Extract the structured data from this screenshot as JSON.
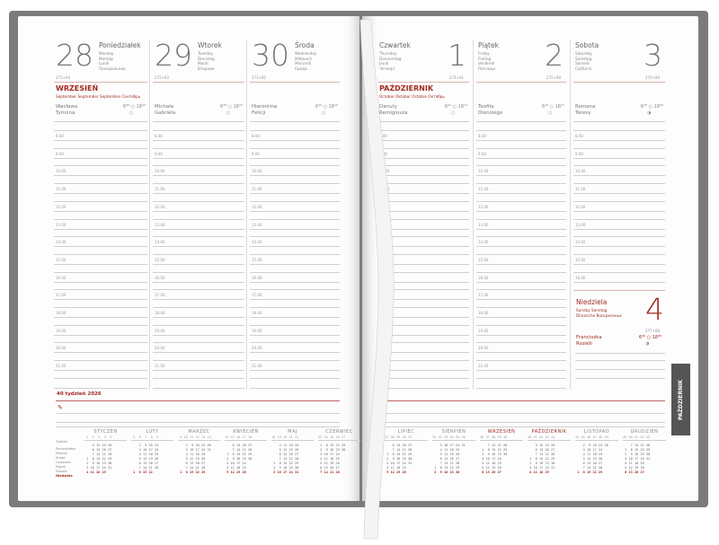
{
  "left_page": {
    "days": [
      {
        "number": "28",
        "name": "Poniedziałek",
        "translations": [
          "Monday",
          "Montag",
          "Lundi",
          "Понедельник"
        ],
        "day_of_year": "271+94",
        "name_days": [
          "Wacława",
          "Tymona"
        ],
        "sun_times": "6³⁶ ○ 18²⁰",
        "moon": "○"
      },
      {
        "number": "29",
        "name": "Wtorek",
        "translations": [
          "Tuesday",
          "Dienstag",
          "Mardi",
          "Вторник"
        ],
        "day_of_year": "272+93",
        "name_days": [
          "Michała",
          "Gabriela"
        ],
        "sun_times": "6³⁸ ○ 18¹⁸",
        "moon": "○"
      },
      {
        "number": "30",
        "name": "Środa",
        "translations": [
          "Wednesday",
          "Mittwoch",
          "Mercredi",
          "Среда"
        ],
        "day_of_year": "273+92",
        "name_days": [
          "Hieronima",
          "Felicji"
        ],
        "sun_times": "6⁴⁰ ○ 18¹⁵",
        "moon": "○"
      }
    ],
    "month": "WRZESIEŃ",
    "month_translations": "September  September  Septembre  Сентябрь",
    "week_label": "40 tydzień 2026"
  },
  "right_page": {
    "days": [
      {
        "number": "1",
        "name": "Czwartek",
        "translations": [
          "Thursday",
          "Donnerstag",
          "Jeudi",
          "Четверг"
        ],
        "day_of_year": "274+91",
        "name_days": [
          "Danuty",
          "Remigiusza"
        ],
        "sun_times": "6⁴¹ ○ 18¹³",
        "moon": "○"
      },
      {
        "number": "2",
        "name": "Piątek",
        "translations": [
          "Friday",
          "Freitag",
          "Vendredi",
          "Пятница"
        ],
        "day_of_year": "275+90",
        "name_days": [
          "Teofila",
          "Dionizego"
        ],
        "sun_times": "6⁴³ ○ 18¹¹",
        "moon": "○"
      },
      {
        "number": "3",
        "name": "Sobota",
        "translations": [
          "Saturday",
          "Samstag",
          "Samedi",
          "Суббота"
        ],
        "day_of_year": "276+89",
        "name_days": [
          "Romana",
          "Teresy"
        ],
        "sun_times": "6⁴⁵ ○ 18⁰⁹",
        "moon": "◑"
      }
    ],
    "month": "PAŹDZIERNIK",
    "month_translations": "October  Oktober  Octobre  Октябрь",
    "sunday": {
      "number": "4",
      "name": "Niedziela",
      "translations": [
        "Sunday Sonntag",
        "Dimanche Воскресенье"
      ],
      "day_of_year": "277+88",
      "name_days": [
        "Franciszka",
        "Rozalii"
      ],
      "sun_times": "6⁴⁶ ○ 18⁰⁸",
      "moon": "◑"
    },
    "tab_label": "PAŹDZIERNIK"
  },
  "hours": [
    "8.00",
    "9.00",
    "10.00",
    "11.00",
    "12.00",
    "13.00",
    "14.00",
    "15.00",
    "16.00",
    "17.00",
    "18.00",
    "19.00",
    "20.00",
    "21.00"
  ],
  "weekday_labels": [
    "Tydzień",
    "Poniedziałek",
    "Wtorek",
    "Środa",
    "Czwartek",
    "Piątek",
    "Sobota",
    "Niedziela"
  ],
  "colors": {
    "accent": "#a02a22",
    "cover": "#7b7b7b",
    "tab": "#555555"
  },
  "icons": {
    "notes": "pen-icon",
    "moon": "moon-phase-icon"
  },
  "mini_calendar": {
    "left": [
      {
        "name": "STYCZEŃ",
        "weeks": " 1  2  3  4  5",
        "rows": [
          "    5 12 19 26",
          "    6 13 20 27",
          "    7 14 21 28",
          " 1  8 15 22 29",
          " 2  9 16 23 30",
          " 3 10 17 24 31",
          " 4 11 18 25"
        ]
      },
      {
        "name": "LUTY",
        "weeks": " 5  6  7  8  9",
        "rows": [
          "    2  9 16 23",
          "    3 10 17 24",
          "    4 11 18 25",
          "    5 12 19 26",
          "    6 13 20 27",
          "    7 14 21 28",
          " 1  8 15 22"
        ]
      },
      {
        "name": "MARZEC",
        "weeks": " 9 10 11 12 13 14",
        "rows": [
          "    2  9 16 23 30",
          "    3 10 17 24 31",
          "    4 11 18 25",
          "    5 12 19 26",
          "    6 13 20 27",
          "    7 14 21 28",
          " 1  8 15 22 29"
        ]
      },
      {
        "name": "KWIECIEŃ",
        "weeks": "14 15 16 17 18",
        "rows": [
          "    6 13 20 27",
          "    7 14 21 28",
          " 1  8 15 22 29",
          " 2  9 16 23 30",
          " 3 10 17 24",
          " 4 11 18 25",
          " 5 12 19 26"
        ]
      },
      {
        "name": "MAJ",
        "weeks": "18 19 20 21 22",
        "rows": [
          "    4 11 18 25",
          "    5 12 19 26",
          "    6 13 20 27",
          "    7 14 21 28",
          " 1  8 15 22 29",
          " 2  9 16 23 30",
          " 3 10 17 24 31"
        ]
      },
      {
        "name": "CZERWIEC",
        "weeks": "23 24 25 26 27",
        "rows": [
          " 1  8 15 22 29",
          " 2  9 16 23 30",
          " 3 10 17 24",
          " 4 11 18 25",
          " 5 12 19 26",
          " 6 13 20 27",
          " 7 14 21 28"
        ]
      }
    ],
    "right": [
      {
        "name": "LIPIEC",
        "weeks": "27 28 29 30 31",
        "rows": [
          "    6 13 20 27",
          "    7 14 21 28",
          " 1  8 15 22 29",
          " 2  9 16 23 30",
          " 3 10 17 24 31",
          " 4 11 18 25",
          " 5 12 19 26"
        ]
      },
      {
        "name": "SIERPIEŃ",
        "weeks": "31 32 33 34 35 36",
        "rows": [
          "    3 10 17 24 31",
          "    4 11 18 25",
          "    5 12 19 26",
          "    6 13 20 27",
          "    7 14 21 28",
          " 1  8 15 22 29",
          " 2  9 16 23 30"
        ]
      },
      {
        "name": "WRZESIEŃ",
        "highlight": true,
        "weeks": "36 37 38 39 40",
        "rows": [
          "    7 14 21 28",
          " 1  8 15 22 29",
          " 2  9 16 23 30",
          " 3 10 17 24",
          " 4 11 18 25",
          " 5 12 19 26",
          " 6 13 20 27"
        ]
      },
      {
        "name": "PAŹDZIERNIK",
        "highlight": true,
        "weeks": "40 41 42 43 44",
        "rows": [
          "    5 12 19 26",
          "    6 13 20 27",
          "    7 14 21 28",
          " 1  8 15 22 29",
          " 2  9 16 23 30",
          " 3 10 17 24 31",
          " 4 11 18 25"
        ]
      },
      {
        "name": "LISTOPAD",
        "weeks": "44 45 46 47 48 49",
        "rows": [
          "    2  9 16 23 30",
          "    3 10 17 24",
          "    4 11 18 25",
          "    5 12 19 26",
          "    6 13 20 27",
          "    7 14 21 28",
          " 1  8 15 22 29"
        ]
      },
      {
        "name": "GRUDZIEŃ",
        "weeks": "49 50 51 52 53",
        "rows": [
          "    7 14 21 28",
          " 1  8 15 22 29",
          " 2  9 16 23 30",
          " 3 10 17 24 31",
          " 4 11 18 25",
          " 5 12 19 26",
          " 6 13 20 27"
        ]
      }
    ]
  }
}
